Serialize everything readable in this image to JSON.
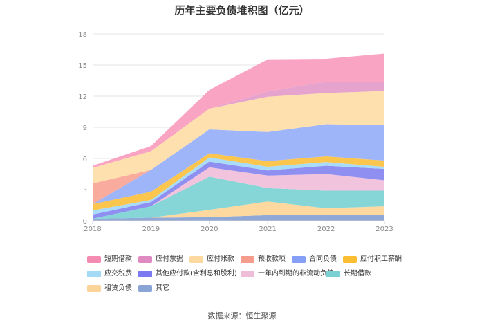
{
  "title": "历年主要负债堆积图（亿元）",
  "source": "数据来源：恒生聚源",
  "chart_data": {
    "type": "area",
    "stacked": true,
    "title": "历年主要负债堆积图（亿元）",
    "xlabel": "",
    "ylabel": "",
    "categories": [
      "2018",
      "2019",
      "2020",
      "2021",
      "2022",
      "2023"
    ],
    "ylim": [
      0,
      18
    ],
    "yticks": [
      "0",
      "3",
      "6",
      "9",
      "12",
      "15",
      "18"
    ],
    "grid": true,
    "legend_position": "bottom",
    "series": [
      {
        "name": "其它",
        "color": "#8fa8d8",
        "values": [
          0.2,
          0.3,
          0.35,
          0.55,
          0.6,
          0.6
        ]
      },
      {
        "name": "租赁负债",
        "color": "#fdd9a0",
        "values": [
          0.0,
          0.0,
          0.7,
          1.3,
          0.6,
          0.8
        ]
      },
      {
        "name": "长期借款",
        "color": "#86d6d8",
        "values": [
          0.0,
          1.1,
          3.2,
          1.3,
          1.7,
          1.5
        ]
      },
      {
        "name": "一年内到期的非流动负债",
        "color": "#f2c3dc",
        "values": [
          0.0,
          0.0,
          0.9,
          1.2,
          1.6,
          1.0
        ]
      },
      {
        "name": "其他应付款(含利息和股利)",
        "color": "#8f8ff2",
        "values": [
          0.4,
          0.4,
          0.55,
          0.5,
          0.8,
          1.1
        ]
      },
      {
        "name": "应交税费",
        "color": "#a8dcf8",
        "values": [
          0.4,
          0.2,
          0.4,
          0.35,
          0.35,
          0.2
        ]
      },
      {
        "name": "应付职工薪酬",
        "color": "#fcc64e",
        "values": [
          0.6,
          0.8,
          0.4,
          0.55,
          0.55,
          0.6
        ]
      },
      {
        "name": "合同负债",
        "color": "#9eb5fa",
        "values": [
          0.0,
          2.1,
          2.3,
          2.8,
          3.1,
          3.4
        ]
      },
      {
        "name": "预收款项",
        "color": "#f9ab9d",
        "values": [
          2.0,
          0.0,
          0.0,
          0.0,
          0.0,
          0.0
        ]
      },
      {
        "name": "应付账款",
        "color": "#fde0ad",
        "values": [
          1.5,
          1.8,
          2.0,
          3.4,
          3.0,
          3.3
        ]
      },
      {
        "name": "应付票据",
        "color": "#e5a3ce",
        "values": [
          0.0,
          0.0,
          0.0,
          0.5,
          1.1,
          0.9
        ]
      },
      {
        "name": "短期借款",
        "color": "#f9a4c2",
        "values": [
          0.2,
          0.5,
          1.8,
          3.1,
          2.2,
          2.7
        ]
      }
    ]
  },
  "legend": [
    {
      "label": "短期借款",
      "color": "#f48bb0"
    },
    {
      "label": "应付票据",
      "color": "#e08ac2"
    },
    {
      "label": "应付账款",
      "color": "#fdd9a0"
    },
    {
      "label": "预收款项",
      "color": "#f59c8c"
    },
    {
      "label": "合同负债",
      "color": "#859ff7"
    },
    {
      "label": "应付职工薪酬",
      "color": "#fbbd31"
    },
    {
      "label": "应交税费",
      "color": "#a3dbf7"
    },
    {
      "label": "其他应付款(含利息和股利)",
      "color": "#7b7af0"
    },
    {
      "label": "一年内到期的非流动负债",
      "color": "#efbdd8"
    },
    {
      "label": "长期借款",
      "color": "#7ad0d2"
    },
    {
      "label": "租赁负债",
      "color": "#fcd398"
    },
    {
      "label": "其它",
      "color": "#8aa4d6"
    }
  ]
}
